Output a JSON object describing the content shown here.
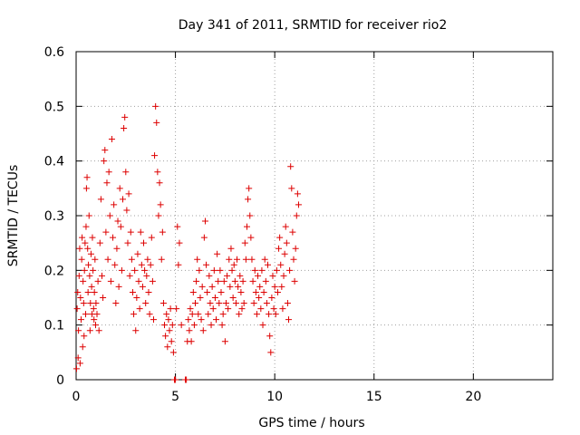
{
  "chart_data": {
    "type": "scatter",
    "title": "Day 341 of 2011, SRMTID for receiver rio2",
    "xlabel": "GPS time / hours",
    "ylabel": "SRMTID / TECUs",
    "xlim": [
      0,
      24
    ],
    "ylim": [
      0,
      0.6
    ],
    "xticks": [
      0,
      5,
      10,
      15,
      20
    ],
    "yticks": [
      0,
      0.1,
      0.2,
      0.3,
      0.4,
      0.5,
      0.6
    ],
    "xtick_labels": [
      "0",
      "5",
      "10",
      "15",
      "20"
    ],
    "ytick_labels": [
      "0",
      "0.1",
      "0.2",
      "0.3",
      "0.4",
      "0.5",
      "0.6"
    ],
    "grid": true,
    "marker": "+",
    "color": "#dd0000",
    "series": [
      {
        "name": "SRMTID",
        "points": [
          [
            0.02,
            0.02
          ],
          [
            0.05,
            0.13
          ],
          [
            0.08,
            0.16
          ],
          [
            0.1,
            0.04
          ],
          [
            0.12,
            0.09
          ],
          [
            0.15,
            0.19
          ],
          [
            0.18,
            0.24
          ],
          [
            0.2,
            0.03
          ],
          [
            0.22,
            0.15
          ],
          [
            0.25,
            0.11
          ],
          [
            0.28,
            0.22
          ],
          [
            0.3,
            0.26
          ],
          [
            0.33,
            0.06
          ],
          [
            0.35,
            0.18
          ],
          [
            0.38,
            0.14
          ],
          [
            0.4,
            0.08
          ],
          [
            0.42,
            0.2
          ],
          [
            0.45,
            0.25
          ],
          [
            0.48,
            0.12
          ],
          [
            0.5,
            0.28
          ],
          [
            0.52,
            0.35
          ],
          [
            0.55,
            0.37
          ],
          [
            0.58,
            0.24
          ],
          [
            0.6,
            0.16
          ],
          [
            0.62,
            0.21
          ],
          [
            0.65,
            0.3
          ],
          [
            0.68,
            0.19
          ],
          [
            0.7,
            0.09
          ],
          [
            0.72,
            0.14
          ],
          [
            0.75,
            0.23
          ],
          [
            0.78,
            0.17
          ],
          [
            0.8,
            0.12
          ],
          [
            0.82,
            0.26
          ],
          [
            0.85,
            0.2
          ],
          [
            0.88,
            0.13
          ],
          [
            0.9,
            0.11
          ],
          [
            0.92,
            0.16
          ],
          [
            0.95,
            0.22
          ],
          [
            0.98,
            0.1
          ],
          [
            1.0,
            0.14
          ],
          [
            1.05,
            0.12
          ],
          [
            1.1,
            0.18
          ],
          [
            1.15,
            0.09
          ],
          [
            1.2,
            0.25
          ],
          [
            1.25,
            0.33
          ],
          [
            1.3,
            0.19
          ],
          [
            1.35,
            0.15
          ],
          [
            1.4,
            0.4
          ],
          [
            1.45,
            0.42
          ],
          [
            1.5,
            0.27
          ],
          [
            1.55,
            0.36
          ],
          [
            1.6,
            0.22
          ],
          [
            1.65,
            0.38
          ],
          [
            1.7,
            0.3
          ],
          [
            1.75,
            0.18
          ],
          [
            1.8,
            0.44
          ],
          [
            1.85,
            0.26
          ],
          [
            1.9,
            0.32
          ],
          [
            1.95,
            0.21
          ],
          [
            2.0,
            0.14
          ],
          [
            2.05,
            0.24
          ],
          [
            2.1,
            0.29
          ],
          [
            2.15,
            0.17
          ],
          [
            2.2,
            0.35
          ],
          [
            2.25,
            0.28
          ],
          [
            2.3,
            0.2
          ],
          [
            2.35,
            0.33
          ],
          [
            2.4,
            0.46
          ],
          [
            2.45,
            0.48
          ],
          [
            2.5,
            0.38
          ],
          [
            2.55,
            0.31
          ],
          [
            2.6,
            0.25
          ],
          [
            2.65,
            0.34
          ],
          [
            2.7,
            0.19
          ],
          [
            2.75,
            0.27
          ],
          [
            2.8,
            0.22
          ],
          [
            2.85,
            0.16
          ],
          [
            2.9,
            0.12
          ],
          [
            2.95,
            0.2
          ],
          [
            3.0,
            0.09
          ],
          [
            3.05,
            0.15
          ],
          [
            3.1,
            0.23
          ],
          [
            3.15,
            0.18
          ],
          [
            3.2,
            0.13
          ],
          [
            3.25,
            0.27
          ],
          [
            3.3,
            0.21
          ],
          [
            3.35,
            0.17
          ],
          [
            3.4,
            0.25
          ],
          [
            3.45,
            0.2
          ],
          [
            3.5,
            0.14
          ],
          [
            3.55,
            0.19
          ],
          [
            3.6,
            0.22
          ],
          [
            3.65,
            0.16
          ],
          [
            3.7,
            0.12
          ],
          [
            3.75,
            0.21
          ],
          [
            3.8,
            0.26
          ],
          [
            3.85,
            0.18
          ],
          [
            3.9,
            0.11
          ],
          [
            3.95,
            0.41
          ],
          [
            4.0,
            0.5
          ],
          [
            4.05,
            0.47
          ],
          [
            4.1,
            0.38
          ],
          [
            4.15,
            0.3
          ],
          [
            4.2,
            0.36
          ],
          [
            4.25,
            0.32
          ],
          [
            4.3,
            0.22
          ],
          [
            4.35,
            0.27
          ],
          [
            4.4,
            0.14
          ],
          [
            4.45,
            0.1
          ],
          [
            4.5,
            0.08
          ],
          [
            4.55,
            0.12
          ],
          [
            4.6,
            0.06
          ],
          [
            4.65,
            0.11
          ],
          [
            4.7,
            0.09
          ],
          [
            4.75,
            0.13
          ],
          [
            4.8,
            0.07
          ],
          [
            4.85,
            0.1
          ],
          [
            4.9,
            0.05
          ],
          [
            4.95,
            0.0
          ],
          [
            5.0,
            0.0
          ],
          [
            5.05,
            0.13
          ],
          [
            5.1,
            0.28
          ],
          [
            5.15,
            0.21
          ],
          [
            5.2,
            0.25
          ],
          [
            5.3,
            0.1
          ],
          [
            5.5,
            0.0
          ],
          [
            5.55,
            0.0
          ],
          [
            5.6,
            0.07
          ],
          [
            5.65,
            0.11
          ],
          [
            5.7,
            0.09
          ],
          [
            5.75,
            0.13
          ],
          [
            5.8,
            0.07
          ],
          [
            5.85,
            0.12
          ],
          [
            5.9,
            0.16
          ],
          [
            5.95,
            0.1
          ],
          [
            6.0,
            0.14
          ],
          [
            6.05,
            0.18
          ],
          [
            6.1,
            0.22
          ],
          [
            6.15,
            0.12
          ],
          [
            6.2,
            0.2
          ],
          [
            6.25,
            0.15
          ],
          [
            6.3,
            0.11
          ],
          [
            6.35,
            0.17
          ],
          [
            6.4,
            0.09
          ],
          [
            6.45,
            0.26
          ],
          [
            6.5,
            0.29
          ],
          [
            6.55,
            0.21
          ],
          [
            6.6,
            0.16
          ],
          [
            6.65,
            0.12
          ],
          [
            6.7,
            0.19
          ],
          [
            6.75,
            0.14
          ],
          [
            6.8,
            0.1
          ],
          [
            6.85,
            0.17
          ],
          [
            6.9,
            0.13
          ],
          [
            6.95,
            0.2
          ],
          [
            7.0,
            0.15
          ],
          [
            7.05,
            0.11
          ],
          [
            7.1,
            0.23
          ],
          [
            7.15,
            0.18
          ],
          [
            7.2,
            0.14
          ],
          [
            7.25,
            0.2
          ],
          [
            7.3,
            0.16
          ],
          [
            7.35,
            0.1
          ],
          [
            7.4,
            0.12
          ],
          [
            7.45,
            0.18
          ],
          [
            7.5,
            0.07
          ],
          [
            7.55,
            0.14
          ],
          [
            7.6,
            0.19
          ],
          [
            7.65,
            0.13
          ],
          [
            7.7,
            0.22
          ],
          [
            7.75,
            0.17
          ],
          [
            7.8,
            0.24
          ],
          [
            7.85,
            0.2
          ],
          [
            7.9,
            0.15
          ],
          [
            7.95,
            0.21
          ],
          [
            8.0,
            0.18
          ],
          [
            8.05,
            0.14
          ],
          [
            8.1,
            0.22
          ],
          [
            8.15,
            0.17
          ],
          [
            8.2,
            0.12
          ],
          [
            8.25,
            0.19
          ],
          [
            8.3,
            0.16
          ],
          [
            8.35,
            0.13
          ],
          [
            8.4,
            0.18
          ],
          [
            8.45,
            0.14
          ],
          [
            8.5,
            0.25
          ],
          [
            8.55,
            0.22
          ],
          [
            8.6,
            0.28
          ],
          [
            8.65,
            0.33
          ],
          [
            8.7,
            0.35
          ],
          [
            8.75,
            0.3
          ],
          [
            8.8,
            0.26
          ],
          [
            8.85,
            0.22
          ],
          [
            8.9,
            0.18
          ],
          [
            8.95,
            0.14
          ],
          [
            9.0,
            0.2
          ],
          [
            9.05,
            0.16
          ],
          [
            9.1,
            0.12
          ],
          [
            9.15,
            0.19
          ],
          [
            9.2,
            0.15
          ],
          [
            9.25,
            0.17
          ],
          [
            9.3,
            0.13
          ],
          [
            9.35,
            0.2
          ],
          [
            9.4,
            0.1
          ],
          [
            9.45,
            0.16
          ],
          [
            9.5,
            0.22
          ],
          [
            9.55,
            0.18
          ],
          [
            9.6,
            0.14
          ],
          [
            9.65,
            0.21
          ],
          [
            9.7,
            0.12
          ],
          [
            9.75,
            0.08
          ],
          [
            9.8,
            0.05
          ],
          [
            9.85,
            0.15
          ],
          [
            9.9,
            0.19
          ],
          [
            9.95,
            0.13
          ],
          [
            10.0,
            0.17
          ],
          [
            10.05,
            0.12
          ],
          [
            10.1,
            0.2
          ],
          [
            10.15,
            0.16
          ],
          [
            10.2,
            0.24
          ],
          [
            10.25,
            0.26
          ],
          [
            10.3,
            0.21
          ],
          [
            10.35,
            0.17
          ],
          [
            10.4,
            0.13
          ],
          [
            10.45,
            0.19
          ],
          [
            10.5,
            0.23
          ],
          [
            10.55,
            0.28
          ],
          [
            10.6,
            0.25
          ],
          [
            10.65,
            0.14
          ],
          [
            10.7,
            0.11
          ],
          [
            10.75,
            0.2
          ],
          [
            10.8,
            0.39
          ],
          [
            10.85,
            0.35
          ],
          [
            10.9,
            0.27
          ],
          [
            10.95,
            0.22
          ],
          [
            11.0,
            0.18
          ],
          [
            11.05,
            0.24
          ],
          [
            11.1,
            0.3
          ],
          [
            11.15,
            0.34
          ],
          [
            11.2,
            0.32
          ]
        ]
      }
    ]
  }
}
